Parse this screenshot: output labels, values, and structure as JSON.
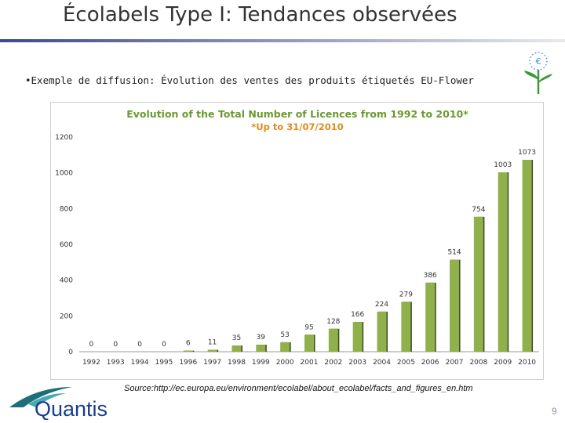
{
  "slide": {
    "title": "Écolabels Type I: Tendances observées",
    "bullet_text": "•Exemple de diffusion: Évolution des ventes des produits étiquetés EU-Flower",
    "source": "Source:http://ec.europa.eu/environment/ecolabel/about_ecolabel/facts_and_figures_en.htm",
    "page_number": "9",
    "logo_text": "Quantis",
    "flower_symbol": "€"
  },
  "chart_data": {
    "type": "bar",
    "title": "Evolution of the Total Number of Licences from 1992 to 2010*",
    "subtitle": "*Up to 31/07/2010",
    "categories": [
      "1992",
      "1993",
      "1994",
      "1995",
      "1996",
      "1997",
      "1998",
      "1999",
      "2000",
      "2001",
      "2002",
      "2003",
      "2004",
      "2005",
      "2006",
      "2007",
      "2008",
      "2009",
      "2010"
    ],
    "values": [
      0,
      0,
      0,
      0,
      6,
      11,
      35,
      39,
      53,
      95,
      128,
      166,
      224,
      279,
      386,
      514,
      754,
      1003,
      1073
    ],
    "value_labels": [
      "0",
      "0",
      "0",
      "0",
      "6",
      "11",
      "35",
      "39",
      "53",
      "95",
      "128",
      "166",
      "224",
      "279",
      "386",
      "514",
      "754",
      "1003",
      "1073"
    ],
    "y_ticks": [
      0,
      200,
      400,
      600,
      800,
      1000,
      1200
    ],
    "ylim": [
      0,
      1200
    ],
    "grid": false,
    "colors": {
      "bar": "#8fb04a",
      "bar_shadow": "#3d4a25",
      "title": "#6a9a2e",
      "subtitle": "#e08a1a"
    }
  }
}
